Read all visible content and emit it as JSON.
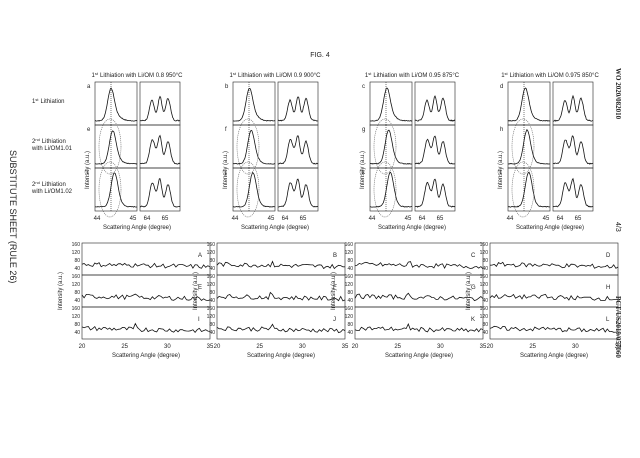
{
  "header": {
    "figure": "FIG. 4",
    "publication": "WO 2020/082010",
    "sheet": "4/3",
    "application": "PCT/US2019/057060",
    "margin_note": "SUBSTITUTE SHEET (RULE 26)"
  },
  "top": {
    "row_labels": [
      {
        "num": "1",
        "sup": "st",
        "text": "Lithiation"
      },
      {
        "num": "2",
        "sup": "nd",
        "text": "Lithiation",
        "line2": "with Li/OM1.01"
      },
      {
        "num": "2",
        "sup": "nd",
        "text": "Lithiation",
        "line2": "with Li/OM1.02"
      }
    ],
    "columns": [
      {
        "title": {
          "num": "1",
          "sup": "st",
          "text": "Lithiation with Li/OM 0.8 950°C"
        },
        "panels": [
          "a",
          "e",
          "i"
        ]
      },
      {
        "title": {
          "num": "1",
          "sup": "st",
          "text": "Lithiation with Li/OM 0.9 900°C"
        },
        "panels": [
          "b",
          "f",
          "j"
        ]
      },
      {
        "title": {
          "num": "1",
          "sup": "st",
          "text": "Lithiation with Li/OM 0.95 875°C"
        },
        "panels": [
          "c",
          "g",
          "k"
        ]
      },
      {
        "title": {
          "num": "1",
          "sup": "st",
          "text": "Lithiation with Li/OM 0.975 850°C"
        },
        "panels": [
          "d",
          "h",
          "l"
        ]
      }
    ],
    "y_label": "Intensity (a.u.)",
    "x_label": "Scattering Angle (degree)",
    "x_ticks_left": [
      "44",
      "45"
    ],
    "x_ticks_right": [
      "64",
      "65"
    ]
  },
  "bottom": {
    "columns": [
      {
        "panels": [
          "A",
          "E",
          "I"
        ]
      },
      {
        "panels": [
          "B",
          "F",
          "J"
        ]
      },
      {
        "panels": [
          "C",
          "G",
          "K"
        ]
      },
      {
        "panels": [
          "D",
          "H",
          "L"
        ]
      }
    ],
    "y_ticks": [
      "160",
      "120",
      "80",
      "40"
    ],
    "x_ticks": [
      "20",
      "25",
      "30",
      "35"
    ],
    "y_label": "Intensity (a.u.)",
    "x_label": "Scattering Angle (degree)"
  }
}
